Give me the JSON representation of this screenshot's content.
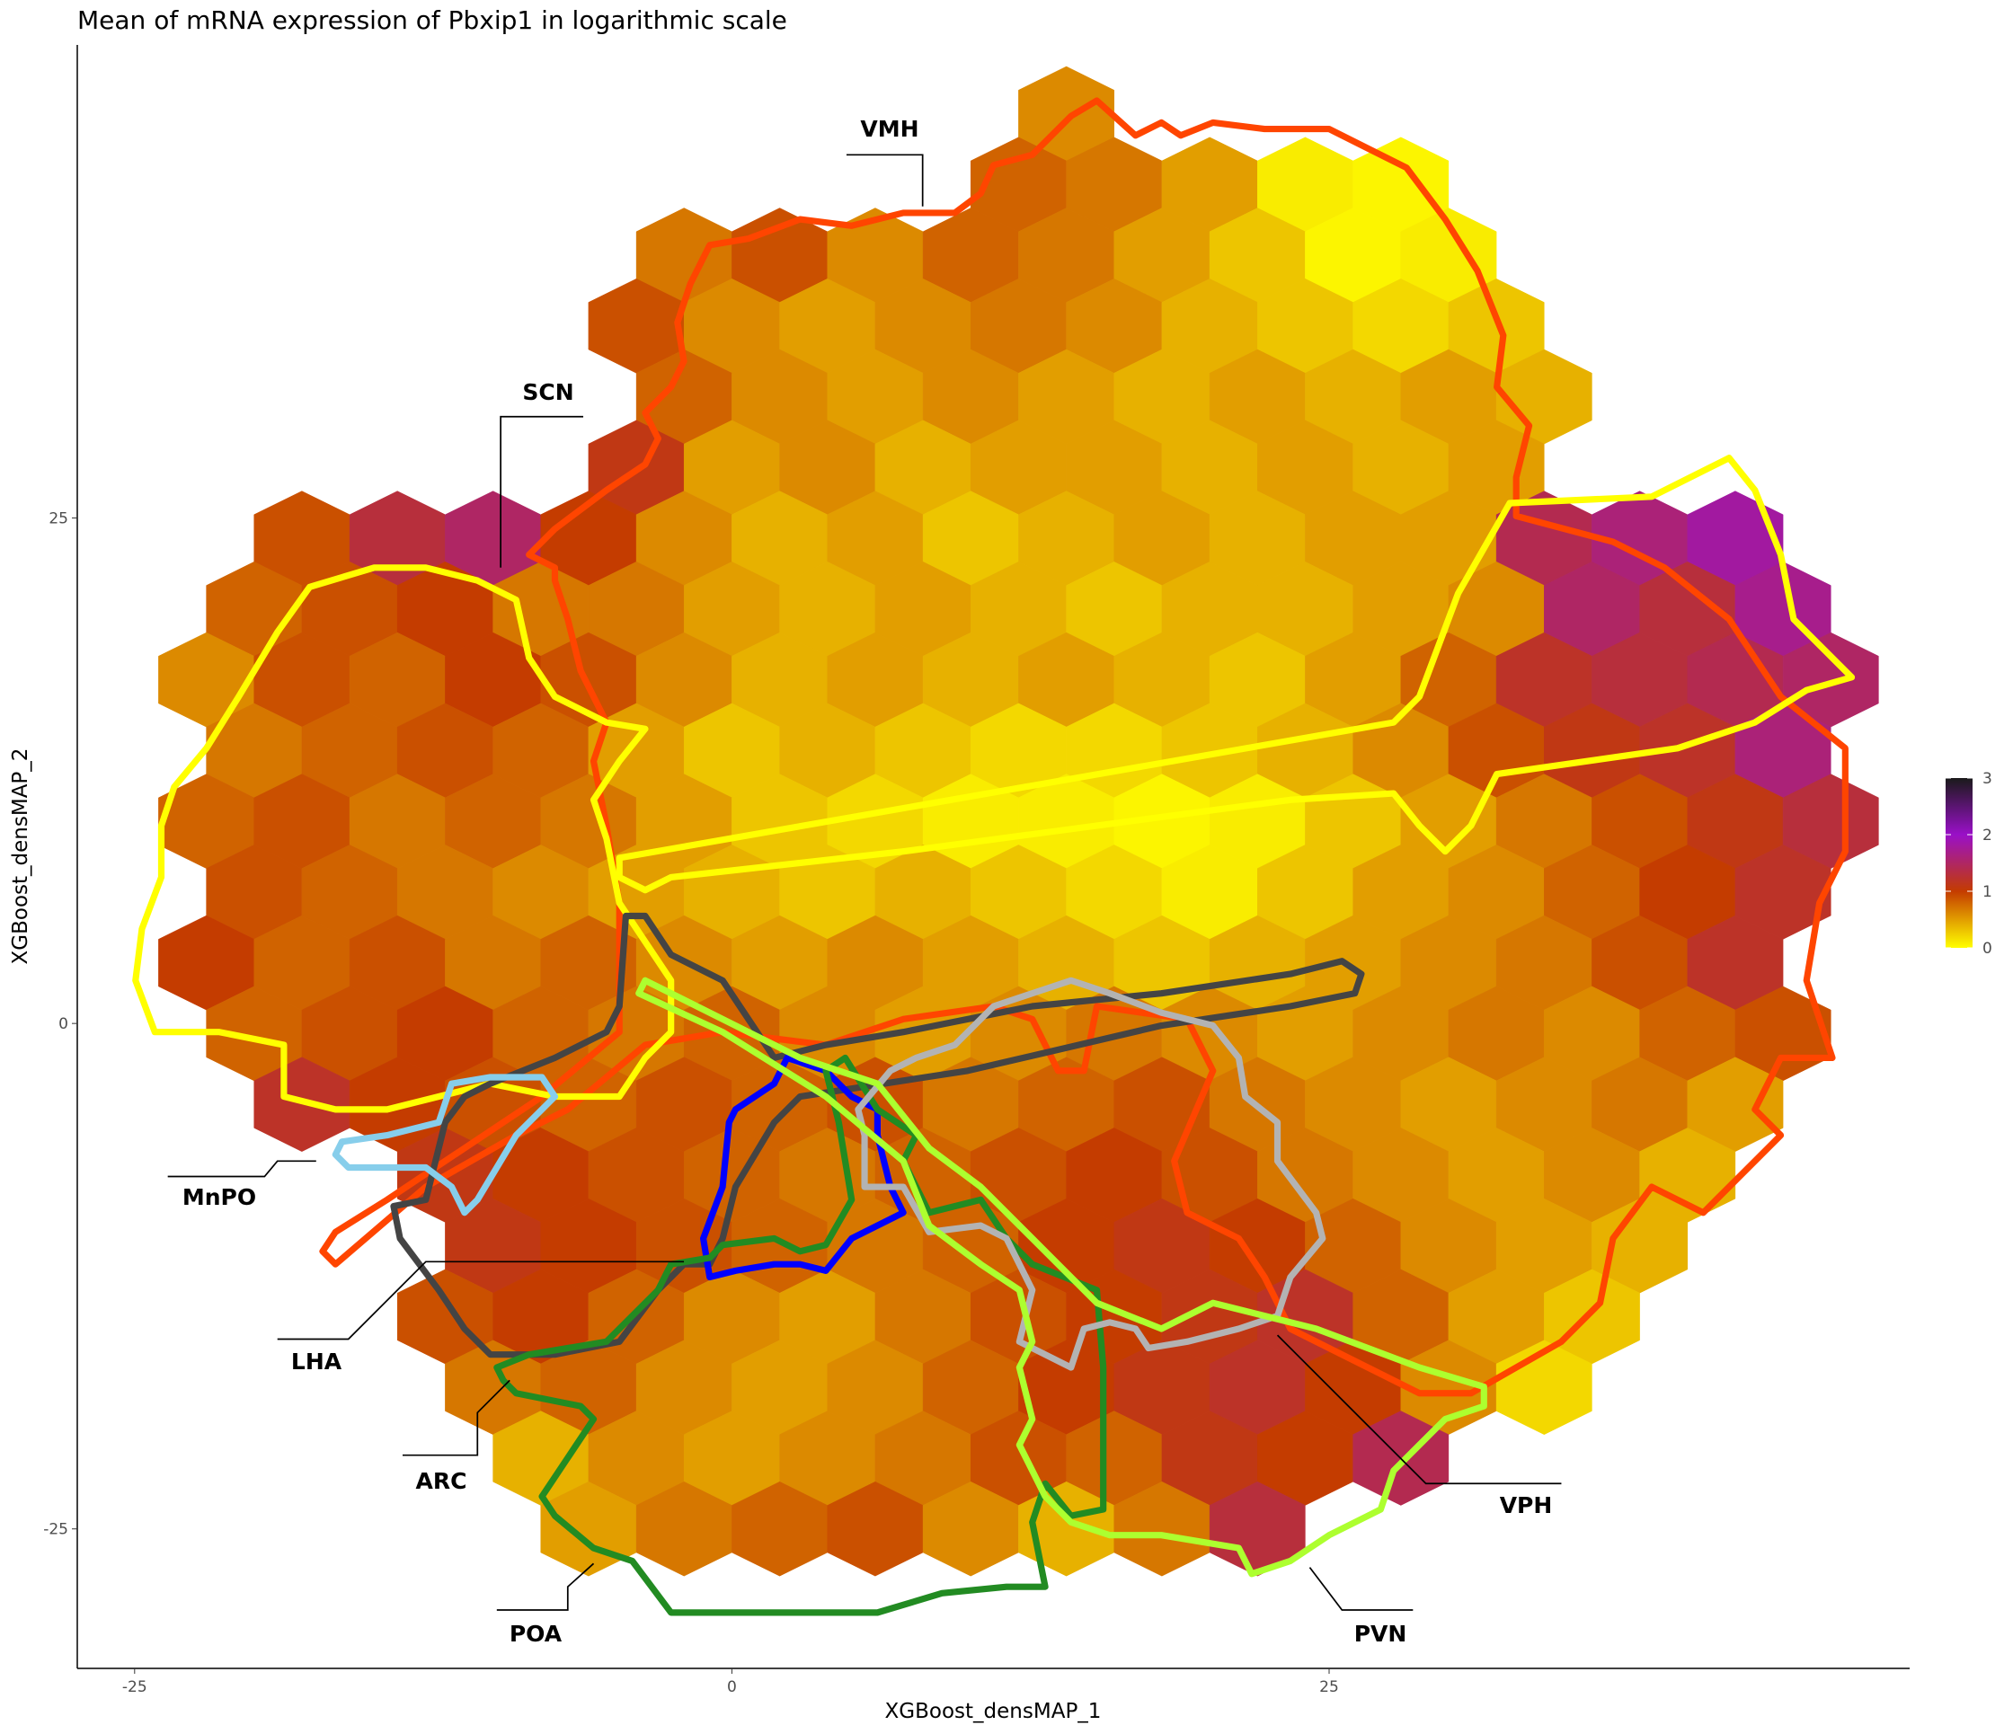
{
  "chart_data": {
    "type": "hexbin",
    "title": "Mean of mRNA expression of Pbxip1 in logarithmic scale",
    "x_label": "XGBoost_densMAP_1",
    "y_label": "XGBoost_densMAP_2",
    "xlim": [
      -27.4,
      49.3
    ],
    "ylim": [
      -31.9,
      48.4
    ],
    "xticks": [
      -25,
      0,
      25
    ],
    "yticks": [
      -25,
      0,
      25
    ],
    "grid": false,
    "colorbar": {
      "ticks": [
        0,
        1,
        2,
        3
      ],
      "colors": [
        "#ffff00",
        "#c43c00",
        "#9a10c8",
        "#1a1a1a"
      ]
    },
    "region_labels": [
      "VMH",
      "SCN",
      "MnPO",
      "LHA",
      "ARC",
      "POA",
      "PVN",
      "VPH"
    ],
    "hexbin": {
      "rows": [
        {
          "y": 45,
          "x": [
            14
          ],
          "values": [
            0.6
          ]
        },
        {
          "y": 41.5,
          "x": [
            12,
            16,
            20,
            24,
            28
          ],
          "values": [
            0.8,
            0.7,
            0.5,
            0.1,
            0.05
          ]
        },
        {
          "y": 38,
          "x": [
            -2,
            2,
            6,
            10,
            14,
            18,
            22,
            26,
            30
          ],
          "values": [
            0.7,
            0.9,
            0.6,
            0.8,
            0.7,
            0.5,
            0.3,
            0.05,
            0.1
          ]
        },
        {
          "y": 34.5,
          "x": [
            -4,
            0,
            4,
            8,
            12,
            16,
            20,
            24,
            28,
            32
          ],
          "values": [
            0.9,
            0.6,
            0.5,
            0.6,
            0.7,
            0.6,
            0.4,
            0.3,
            0.2,
            0.3
          ]
        },
        {
          "y": 31,
          "x": [
            -2,
            2,
            6,
            10,
            14,
            18,
            22,
            26,
            30,
            34
          ],
          "values": [
            0.8,
            0.6,
            0.5,
            0.6,
            0.5,
            0.4,
            0.5,
            0.4,
            0.5,
            0.4
          ]
        },
        {
          "y": 27.5,
          "x": [
            -4,
            0,
            4,
            8,
            12,
            16,
            20,
            24,
            28,
            32
          ],
          "values": [
            1.1,
            0.5,
            0.6,
            0.4,
            0.5,
            0.5,
            0.4,
            0.5,
            0.4,
            0.5
          ]
        },
        {
          "y": 24,
          "x": [
            -18,
            -14,
            -10,
            -6,
            -2,
            2,
            6,
            10,
            14,
            18,
            22,
            26,
            30,
            34,
            38,
            42
          ],
          "values": [
            0.9,
            1.3,
            1.5,
            1.0,
            0.6,
            0.4,
            0.5,
            0.3,
            0.4,
            0.5,
            0.4,
            0.5,
            0.5,
            1.4,
            1.6,
            1.8
          ]
        },
        {
          "y": 20.5,
          "x": [
            -20,
            -16,
            -12,
            -8,
            -4,
            0,
            4,
            8,
            12,
            16,
            20,
            24,
            28,
            32,
            36,
            40,
            44
          ],
          "values": [
            0.8,
            0.9,
            1.0,
            0.7,
            0.7,
            0.5,
            0.4,
            0.5,
            0.4,
            0.3,
            0.4,
            0.4,
            0.5,
            0.6,
            1.5,
            1.3,
            1.7
          ]
        },
        {
          "y": 17,
          "x": [
            -22,
            -18,
            -14,
            -10,
            -6,
            -2,
            2,
            6,
            10,
            14,
            18,
            22,
            26,
            30,
            34,
            38,
            42,
            46
          ],
          "values": [
            0.6,
            0.9,
            0.8,
            1.0,
            0.9,
            0.6,
            0.4,
            0.5,
            0.4,
            0.5,
            0.4,
            0.3,
            0.5,
            0.8,
            1.2,
            1.3,
            1.4,
            1.5
          ]
        },
        {
          "y": 13.5,
          "x": [
            -20,
            -16,
            -12,
            -8,
            -4,
            0,
            4,
            8,
            12,
            16,
            20,
            24,
            28,
            32,
            36,
            40,
            44
          ],
          "values": [
            0.7,
            0.8,
            0.9,
            0.8,
            0.5,
            0.3,
            0.4,
            0.3,
            0.2,
            0.2,
            0.3,
            0.4,
            0.6,
            0.9,
            1.1,
            1.2,
            1.6
          ]
        },
        {
          "y": 10,
          "x": [
            -22,
            -18,
            -14,
            -10,
            -6,
            -2,
            2,
            6,
            10,
            14,
            18,
            22,
            26,
            30,
            34,
            38,
            42,
            46
          ],
          "values": [
            0.8,
            0.9,
            0.7,
            0.8,
            0.7,
            0.5,
            0.3,
            0.2,
            0.1,
            0.1,
            0.05,
            0.1,
            0.3,
            0.5,
            0.7,
            0.9,
            1.1,
            1.3
          ]
        },
        {
          "y": 6.5,
          "x": [
            -20,
            -16,
            -12,
            -8,
            -4,
            0,
            4,
            8,
            12,
            16,
            20,
            24,
            28,
            32,
            36,
            40,
            44
          ],
          "values": [
            0.9,
            0.8,
            0.7,
            0.6,
            0.5,
            0.4,
            0.3,
            0.4,
            0.3,
            0.2,
            0.1,
            0.3,
            0.5,
            0.6,
            0.8,
            1.0,
            1.2
          ]
        },
        {
          "y": 3,
          "x": [
            -22,
            -18,
            -14,
            -10,
            -6,
            -2,
            2,
            6,
            10,
            14,
            18,
            22,
            26,
            30,
            34,
            38,
            42
          ],
          "values": [
            1.0,
            0.8,
            0.9,
            0.7,
            0.8,
            0.6,
            0.5,
            0.6,
            0.5,
            0.4,
            0.3,
            0.4,
            0.5,
            0.6,
            0.7,
            0.9,
            1.2
          ]
        },
        {
          "y": -0.5,
          "x": [
            -20,
            -16,
            -12,
            -8,
            -4,
            0,
            4,
            8,
            12,
            16,
            20,
            24,
            28,
            32,
            36,
            40,
            44
          ],
          "values": [
            0.8,
            0.9,
            1.0,
            0.8,
            0.7,
            0.8,
            0.6,
            0.5,
            0.6,
            0.7,
            0.6,
            0.5,
            0.6,
            0.7,
            0.6,
            0.8,
            0.9
          ]
        },
        {
          "y": -4,
          "x": [
            -18,
            -14,
            -10,
            -6,
            -2,
            2,
            6,
            10,
            14,
            18,
            22,
            26,
            30,
            34,
            38,
            42
          ],
          "values": [
            1.2,
            1.0,
            0.9,
            0.8,
            0.9,
            0.8,
            0.9,
            0.7,
            0.8,
            0.9,
            0.7,
            0.6,
            0.5,
            0.6,
            0.7,
            0.5
          ]
        },
        {
          "y": -7.5,
          "x": [
            -12,
            -8,
            -4,
            0,
            4,
            8,
            12,
            16,
            20,
            24,
            28,
            32,
            36,
            40
          ],
          "values": [
            1.1,
            1.0,
            0.9,
            0.8,
            0.7,
            0.8,
            0.9,
            1.0,
            0.9,
            0.7,
            0.6,
            0.5,
            0.6,
            0.4
          ]
        },
        {
          "y": -11,
          "x": [
            -10,
            -6,
            -2,
            2,
            6,
            10,
            14,
            18,
            22,
            26,
            30,
            34,
            38
          ],
          "values": [
            1.1,
            1.0,
            0.9,
            0.8,
            0.7,
            0.8,
            1.0,
            1.1,
            1.0,
            0.8,
            0.6,
            0.5,
            0.4
          ]
        },
        {
          "y": -14.5,
          "x": [
            -12,
            -8,
            -4,
            0,
            4,
            8,
            12,
            16,
            20,
            24,
            28,
            32,
            36
          ],
          "values": [
            0.9,
            1.0,
            0.8,
            0.6,
            0.5,
            0.7,
            0.9,
            1.0,
            1.1,
            1.2,
            0.8,
            0.5,
            0.3
          ]
        },
        {
          "y": -18,
          "x": [
            -10,
            -6,
            -2,
            2,
            6,
            10,
            14,
            18,
            22,
            26,
            30,
            34
          ],
          "values": [
            0.7,
            0.8,
            0.6,
            0.5,
            0.6,
            0.8,
            1.0,
            1.1,
            1.2,
            1.0,
            0.6,
            0.2
          ]
        },
        {
          "y": -21.5,
          "x": [
            -8,
            -4,
            0,
            4,
            8,
            12,
            16,
            20,
            24,
            28
          ],
          "values": [
            0.4,
            0.6,
            0.5,
            0.6,
            0.7,
            0.9,
            0.8,
            1.1,
            1.0,
            1.4
          ]
        },
        {
          "y": -25,
          "x": [
            -6,
            -2,
            2,
            6,
            10,
            14,
            18,
            22
          ],
          "values": [
            0.5,
            0.7,
            0.8,
            0.9,
            0.6,
            0.4,
            0.7,
            1.3
          ]
        }
      ]
    }
  }
}
